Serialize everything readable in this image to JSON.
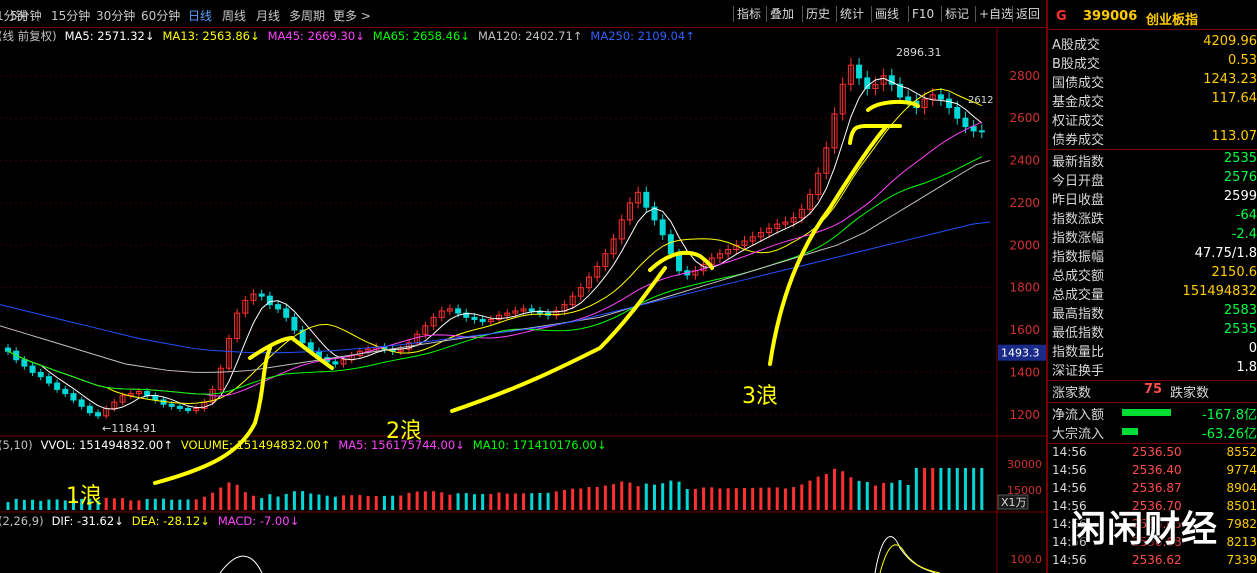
{
  "toolbar": {
    "periods": [
      "1分钟",
      "5分钟",
      "15分钟",
      "30分钟",
      "60分钟",
      "日线",
      "周线",
      "月线",
      "多周期",
      "更多 >"
    ],
    "active_period": "日线",
    "tools": [
      "指标",
      "叠加",
      "历史",
      "统计",
      "画线",
      "F10",
      "标记",
      "+自选",
      "返回"
    ]
  },
  "indicators": {
    "price_prefix": "(线 前复权)",
    "ma_items": [
      {
        "label": "MA5: 2571.32↓",
        "color": "#ffffff"
      },
      {
        "label": "MA13: 2563.86↓",
        "color": "#ffff00"
      },
      {
        "label": "MA45: 2669.30↓",
        "color": "#ff44ff"
      },
      {
        "label": "MA65: 2658.46↓",
        "color": "#00ff00"
      },
      {
        "label": "MA120: 2402.71↑",
        "color": "#c0c0c0"
      },
      {
        "label": "MA250: 2109.04↑",
        "color": "#3060ff"
      }
    ],
    "vol_prefix": "(5,10)",
    "vol_items": [
      {
        "label": "VVOL: 151494832.00↑",
        "color": "#ffffff"
      },
      {
        "label": "VOLUME: 151494832.00↑",
        "color": "#ffff00"
      },
      {
        "label": "MA5: 156175744.00↓",
        "color": "#ff44ff"
      },
      {
        "label": "MA10: 171410176.00↓",
        "color": "#00ff00"
      }
    ],
    "macd_prefix": "(2,26,9)",
    "macd_items": [
      {
        "label": "DIF: -31.62↓",
        "color": "#ffffff"
      },
      {
        "label": "DEA: -28.12↓",
        "color": "#ffff00"
      },
      {
        "label": "MACD: -7.00↓",
        "color": "#ff44ff"
      }
    ]
  },
  "chart_data": {
    "type": "candlestick",
    "y_axis": {
      "ticks": [
        1200,
        1400,
        1600,
        1800,
        2000,
        2200,
        2400,
        2600,
        2800
      ],
      "range": [
        1100,
        2950
      ]
    },
    "price_marker": "1493.3",
    "annotations": {
      "low_label": "←1184.91",
      "high_label": "2896.31",
      "right_label": "2612",
      "waves": [
        "1浪",
        "2浪",
        "3浪"
      ]
    },
    "close_series": [
      1500,
      1460,
      1430,
      1400,
      1380,
      1350,
      1320,
      1300,
      1270,
      1240,
      1210,
      1195,
      1230,
      1260,
      1290,
      1300,
      1310,
      1290,
      1270,
      1250,
      1240,
      1230,
      1220,
      1230,
      1260,
      1320,
      1420,
      1560,
      1680,
      1740,
      1770,
      1760,
      1720,
      1700,
      1660,
      1600,
      1540,
      1500,
      1470,
      1450,
      1440,
      1460,
      1480,
      1500,
      1510,
      1520,
      1510,
      1500,
      1510,
      1540,
      1580,
      1620,
      1660,
      1690,
      1700,
      1680,
      1660,
      1650,
      1640,
      1650,
      1670,
      1680,
      1690,
      1700,
      1690,
      1680,
      1670,
      1690,
      1720,
      1760,
      1800,
      1850,
      1900,
      1960,
      2030,
      2120,
      2200,
      2250,
      2180,
      2120,
      2050,
      1960,
      1880,
      1860,
      1880,
      1910,
      1940,
      1960,
      1980,
      2000,
      2020,
      2040,
      2060,
      2080,
      2100,
      2110,
      2130,
      2170,
      2240,
      2340,
      2460,
      2620,
      2760,
      2850,
      2790,
      2740,
      2760,
      2800,
      2760,
      2700,
      2680,
      2650,
      2690,
      2710,
      2690,
      2650,
      2600,
      2560,
      2540,
      2536
    ],
    "ma120_series": [
      1620,
      1600,
      1580,
      1560,
      1540,
      1520,
      1500,
      1480,
      1460,
      1440,
      1430,
      1420,
      1410,
      1405,
      1400,
      1400,
      1402,
      1405,
      1410,
      1420,
      1430,
      1440,
      1450,
      1460,
      1470,
      1480,
      1490,
      1500,
      1510,
      1520,
      1530,
      1540,
      1550,
      1560,
      1570,
      1580,
      1590,
      1600,
      1610,
      1620,
      1630,
      1640,
      1650,
      1660,
      1680,
      1700,
      1720,
      1740,
      1760,
      1780,
      1800,
      1820,
      1840,
      1860,
      1880,
      1900,
      1920,
      1940,
      1960,
      1980,
      2000,
      2030,
      2060,
      2100,
      2140,
      2180,
      2220,
      2260,
      2300,
      2340,
      2380,
      2400
    ],
    "ma250_series": [
      1720,
      1700,
      1680,
      1660,
      1640,
      1620,
      1600,
      1580,
      1560,
      1545,
      1530,
      1515,
      1505,
      1500,
      1495,
      1493,
      1493,
      1495,
      1498,
      1502,
      1508,
      1515,
      1522,
      1530,
      1540,
      1550,
      1560,
      1570,
      1580,
      1590,
      1600,
      1612,
      1625,
      1640,
      1660,
      1680,
      1700,
      1720,
      1740,
      1760,
      1780,
      1800,
      1820,
      1840,
      1860,
      1880,
      1900,
      1920,
      1940,
      1960,
      1980,
      2000,
      2020,
      2040,
      2060,
      2080,
      2100,
      2110
    ],
    "volume_ticks": [
      15000,
      30000
    ],
    "volume_unit": "X1万",
    "macd_tick": "100.0"
  },
  "quote": {
    "flag": "G",
    "code": "399006",
    "name": "创业板指",
    "turnover": [
      {
        "k": "A股成交",
        "v": "4209.96",
        "c": "#ffcc00"
      },
      {
        "k": "B股成交",
        "v": "0.53",
        "c": "#ffcc00"
      },
      {
        "k": "国债成交",
        "v": "1243.23",
        "c": "#ffcc00"
      },
      {
        "k": "基金成交",
        "v": "117.64",
        "c": "#ffcc00"
      },
      {
        "k": "权证成交",
        "v": "",
        "c": "#ffcc00"
      },
      {
        "k": "债券成交",
        "v": "113.07",
        "c": "#ffcc00"
      }
    ],
    "stats": [
      {
        "k": "最新指数",
        "v": "2535",
        "c": "#00ff44"
      },
      {
        "k": "今日开盘",
        "v": "2576",
        "c": "#00ff44"
      },
      {
        "k": "昨日收盘",
        "v": "2599",
        "c": "#ffffff"
      },
      {
        "k": "指数涨跌",
        "v": "-64",
        "c": "#00ff44"
      },
      {
        "k": "指数涨幅",
        "v": "-2.4",
        "c": "#00ff44"
      },
      {
        "k": "指数振幅",
        "v": "47.75/1.8",
        "c": "#ffffff"
      },
      {
        "k": "总成交额",
        "v": "2150.6",
        "c": "#ffcc00"
      },
      {
        "k": "总成交量",
        "v": "151494832",
        "c": "#ffcc00"
      },
      {
        "k": "最高指数",
        "v": "2583",
        "c": "#00ff44"
      },
      {
        "k": "最低指数",
        "v": "2535",
        "c": "#00ff44"
      },
      {
        "k": "指数量比",
        "v": "0",
        "c": "#ffffff"
      },
      {
        "k": "深证换手",
        "v": "1.8",
        "c": "#ffffff"
      }
    ],
    "breadth": {
      "up_label": "涨家数",
      "up_value": "75",
      "down_label": "跌家数"
    },
    "flows": [
      {
        "k": "净流入额",
        "v": "-167.8亿",
        "bar": 0.9
      },
      {
        "k": "大宗流入",
        "v": "-63.26亿",
        "bar": 0.3
      }
    ],
    "ticks": [
      {
        "t": "14:56",
        "p": "2536.50",
        "q": "8552"
      },
      {
        "t": "14:56",
        "p": "2536.40",
        "q": "9774"
      },
      {
        "t": "14:56",
        "p": "2536.87",
        "q": "8904"
      },
      {
        "t": "14:56",
        "p": "2536.70",
        "q": "8501"
      },
      {
        "t": "14:56",
        "p": "2536.65",
        "q": "7982"
      },
      {
        "t": "14:56",
        "p": "2536.68",
        "q": "8213"
      },
      {
        "t": "14:56",
        "p": "2536.62",
        "q": "7339"
      }
    ]
  },
  "watermark": "闲闲财经"
}
